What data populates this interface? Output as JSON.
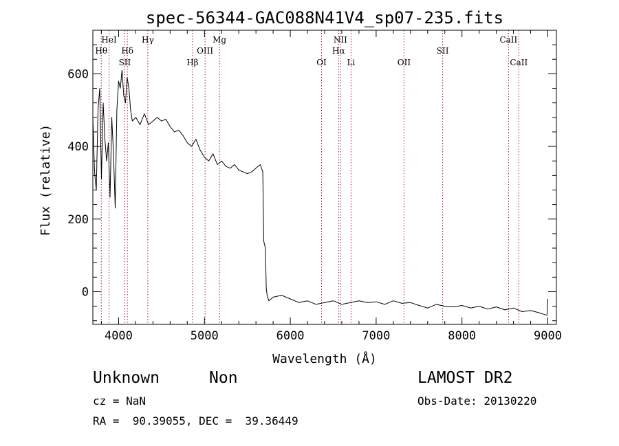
{
  "chart_data": {
    "type": "line",
    "title": "spec-56344-GAC088N41V4_sp07-235.fits",
    "xlabel": "Wavelength (Å)",
    "ylabel": "Flux (relative)",
    "xlim": [
      3700,
      9100
    ],
    "ylim": [
      -90,
      720
    ],
    "xticks": [
      4000,
      5000,
      6000,
      7000,
      8000,
      9000
    ],
    "yticks": [
      0,
      200,
      400,
      600
    ],
    "grid": false,
    "series": [
      {
        "name": "",
        "color": "#000000",
        "x": [
          3700,
          3720,
          3740,
          3760,
          3780,
          3800,
          3820,
          3840,
          3860,
          3880,
          3900,
          3920,
          3940,
          3960,
          3980,
          4000,
          4020,
          4040,
          4060,
          4080,
          4100,
          4120,
          4140,
          4160,
          4200,
          4250,
          4300,
          4350,
          4400,
          4450,
          4500,
          4550,
          4600,
          4650,
          4700,
          4750,
          4800,
          4850,
          4900,
          4950,
          5000,
          5050,
          5100,
          5150,
          5200,
          5250,
          5300,
          5350,
          5400,
          5450,
          5500,
          5550,
          5600,
          5650,
          5680,
          5690,
          5700,
          5710,
          5720,
          5730,
          5750,
          5800,
          5900,
          6000,
          6100,
          6200,
          6300,
          6400,
          6500,
          6600,
          6700,
          6800,
          6900,
          7000,
          7100,
          7200,
          7300,
          7400,
          7500,
          7600,
          7700,
          7800,
          7900,
          8000,
          8100,
          8200,
          8300,
          8400,
          8500,
          8600,
          8700,
          8800,
          8900,
          8950,
          8990,
          9000
        ],
        "y": [
          480,
          330,
          280,
          500,
          560,
          310,
          520,
          420,
          360,
          410,
          260,
          480,
          380,
          230,
          500,
          580,
          560,
          610,
          540,
          520,
          590,
          560,
          500,
          470,
          480,
          460,
          490,
          460,
          470,
          480,
          470,
          475,
          455,
          440,
          445,
          430,
          410,
          400,
          420,
          390,
          370,
          360,
          380,
          350,
          360,
          345,
          340,
          350,
          335,
          330,
          325,
          330,
          340,
          350,
          330,
          140,
          130,
          120,
          10,
          -10,
          -25,
          -15,
          -10,
          -20,
          -30,
          -25,
          -35,
          -30,
          -25,
          -35,
          -30,
          -25,
          -30,
          -28,
          -35,
          -25,
          -32,
          -30,
          -38,
          -45,
          -35,
          -40,
          -42,
          -38,
          -45,
          -40,
          -48,
          -42,
          -50,
          -45,
          -55,
          -52,
          -58,
          -62,
          -65,
          -20
        ]
      }
    ],
    "lines": [
      {
        "label": "HeI",
        "x": 3889,
        "row": 0
      },
      {
        "label": "Hθ",
        "x": 3798,
        "row": 1
      },
      {
        "label": "Hδ",
        "x": 4102,
        "row": 1
      },
      {
        "label": "SII",
        "x": 4072,
        "row": 2
      },
      {
        "label": "Hγ",
        "x": 4340,
        "row": 0
      },
      {
        "label": "Hβ",
        "x": 4861,
        "row": 2
      },
      {
        "label": "OIII",
        "x": 5007,
        "row": 1
      },
      {
        "label": "Mg",
        "x": 5175,
        "row": 0
      },
      {
        "label": "OI",
        "x": 6364,
        "row": 2
      },
      {
        "label": "NII",
        "x": 6583,
        "row": 0
      },
      {
        "label": "Hα",
        "x": 6563,
        "row": 1
      },
      {
        "label": "Li",
        "x": 6708,
        "row": 2
      },
      {
        "label": "OII",
        "x": 7325,
        "row": 2
      },
      {
        "label": "SII",
        "x": 7775,
        "row": 1
      },
      {
        "label": "CaII",
        "x": 8542,
        "row": 0
      },
      {
        "label": "CaII",
        "x": 8662,
        "row": 2
      }
    ]
  },
  "footer": {
    "class_label": "Unknown",
    "subclass_label": "Non",
    "survey": "LAMOST DR2",
    "cz": "cz = NaN",
    "obs_date": "Obs-Date: 20130220",
    "coords": "RA =  90.39055, DEC =  39.36449"
  }
}
